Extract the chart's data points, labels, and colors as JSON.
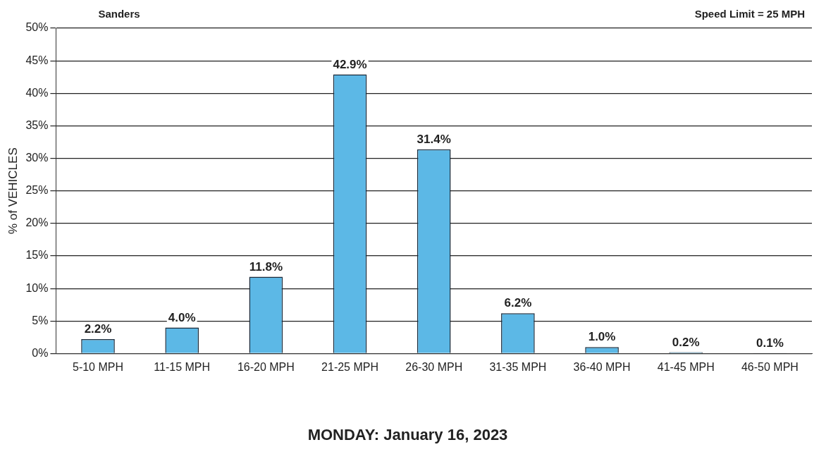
{
  "chart_data": {
    "type": "bar",
    "title": "MONDAY: January 16, 2023",
    "ylabel": "% of VEHICLES",
    "annotations": [
      "Sanders",
      "Speed Limit = 25 MPH"
    ],
    "categories": [
      "5-10 MPH",
      "11-15 MPH",
      "16-20 MPH",
      "21-25 MPH",
      "26-30 MPH",
      "31-35 MPH",
      "36-40 MPH",
      "41-45 MPH",
      "46-50 MPH"
    ],
    "values": [
      2.2,
      4.0,
      11.8,
      42.9,
      31.4,
      6.2,
      1.0,
      0.2,
      0.1
    ],
    "value_labels": [
      "2.2%",
      "4.0%",
      "11.8%",
      "42.9%",
      "31.4%",
      "6.2%",
      "1.0%",
      "0.2%",
      "0.1%"
    ],
    "color": "#5cb8e6",
    "ylim": [
      0,
      50
    ],
    "yticks": [
      {
        "value": 0,
        "label": "0%"
      },
      {
        "value": 5,
        "label": "5%"
      },
      {
        "value": 10,
        "label": "10%"
      },
      {
        "value": 15,
        "label": "15%"
      },
      {
        "value": 20,
        "label": "20%"
      },
      {
        "value": 25,
        "label": "25%"
      },
      {
        "value": 30,
        "label": "30%"
      },
      {
        "value": 35,
        "label": "35%"
      },
      {
        "value": 40,
        "label": "40%"
      },
      {
        "value": 45,
        "label": "45%"
      },
      {
        "value": 50,
        "label": "50%"
      }
    ],
    "grid": "y",
    "legend": false
  }
}
